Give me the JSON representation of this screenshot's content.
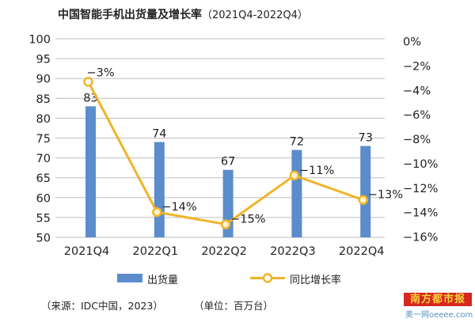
{
  "title": "中国智能手机出货量及增长率",
  "title_period": "（2021Q4-2022Q4）",
  "footer": {
    "source": "（来源：IDC中国，2023）",
    "unit": "（单位：百万台）"
  },
  "watermark": {
    "name": "南方都市报",
    "site": "奥一网oeeee.com"
  },
  "colors": {
    "bar": "#5b8ccc",
    "line": "#f0b429",
    "grid": "#bfbfbf",
    "logo_bg": "#d6271f"
  },
  "chart_data": {
    "type": "bar",
    "title": "中国智能手机出货量及增长率（2021Q4-2022Q4）",
    "categories": [
      "2021Q4",
      "2022Q1",
      "2022Q2",
      "2022Q3",
      "2022Q4"
    ],
    "series": [
      {
        "name": "出货量",
        "type": "bar",
        "axis": "left",
        "values": [
          83,
          74,
          67,
          72,
          73
        ],
        "labels": [
          "83",
          "74",
          "67",
          "72",
          "73"
        ]
      },
      {
        "name": "同比增长率",
        "type": "line",
        "axis": "right",
        "values": [
          -3,
          -14,
          -15,
          -11,
          -13
        ],
        "labels": [
          "−3%",
          "−14%",
          "−15%",
          "−11%",
          "−13%"
        ]
      }
    ],
    "y_left": {
      "min": 50,
      "max": 100,
      "step": 5,
      "ticks": [
        "100",
        "95",
        "90",
        "85",
        "80",
        "75",
        "70",
        "65",
        "60",
        "55",
        "50"
      ]
    },
    "y_right": {
      "min": -16,
      "max": 0,
      "step": 2,
      "ticks": [
        "0%",
        "−2%",
        "−4%",
        "−6%",
        "−8%",
        "−10%",
        "−12%",
        "−14%",
        "−16%"
      ]
    },
    "grid": true,
    "legend_position": "bottom"
  }
}
